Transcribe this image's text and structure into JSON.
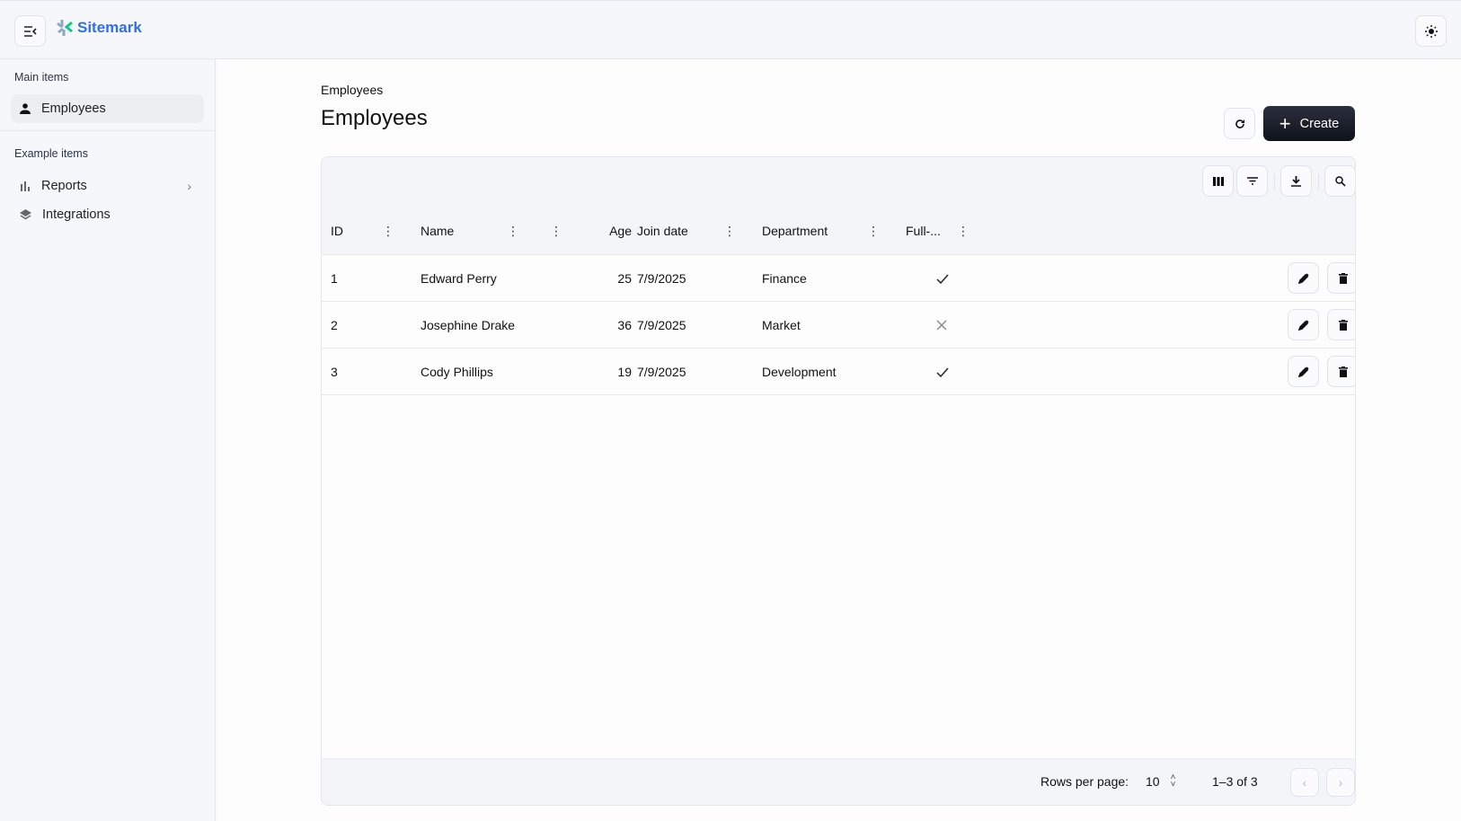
{
  "header": {
    "brand": "Sitemark",
    "menu_icon": "menu-collapse-icon",
    "theme_icon": "sun-icon"
  },
  "sidebar": {
    "sections": [
      {
        "title": "Main items",
        "items": [
          {
            "label": "Employees",
            "icon": "person-icon",
            "active": true
          }
        ]
      },
      {
        "title": "Example items",
        "items": [
          {
            "label": "Reports",
            "icon": "bar-chart-icon",
            "has_chevron": true
          },
          {
            "label": "Integrations",
            "icon": "layers-icon"
          }
        ]
      }
    ]
  },
  "main": {
    "breadcrumb": "Employees",
    "title": "Employees",
    "create_label": "Create",
    "columns": [
      "ID",
      "Name",
      "Age",
      "Join date",
      "Department",
      "Full-..."
    ],
    "rows": [
      {
        "id": "1",
        "name": "Edward Perry",
        "age": "25",
        "join": "7/9/2025",
        "dept": "Finance",
        "fulltime": true
      },
      {
        "id": "2",
        "name": "Josephine Drake",
        "age": "36",
        "join": "7/9/2025",
        "dept": "Market",
        "fulltime": false
      },
      {
        "id": "3",
        "name": "Cody Phillips",
        "age": "19",
        "join": "7/9/2025",
        "dept": "Development",
        "fulltime": true
      }
    ],
    "footer": {
      "rows_per_page_label": "Rows per page:",
      "rows_per_page": "10",
      "range": "1–3 of 3"
    }
  },
  "colors": {
    "brand": "#2f6fee",
    "create_bg": "#141824"
  }
}
